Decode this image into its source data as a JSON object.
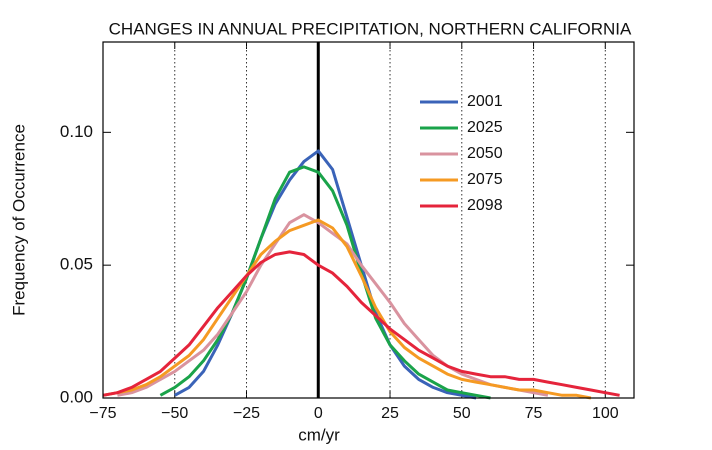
{
  "chart_data": {
    "type": "line",
    "title": "CHANGES IN ANNUAL PRECIPITATION, NORTHERN CALIFORNIA",
    "xlabel": "cm/yr",
    "ylabel": "Frequency of Occurrence",
    "x": [
      -75,
      -70,
      -65,
      -60,
      -55,
      -50,
      -45,
      -40,
      -35,
      -30,
      -25,
      -20,
      -15,
      -10,
      -5,
      0,
      5,
      10,
      15,
      20,
      25,
      30,
      35,
      40,
      45,
      50,
      55,
      60,
      65,
      70,
      75,
      80,
      85,
      90,
      95,
      100,
      105
    ],
    "series": [
      {
        "name": "2001",
        "color": "#3a63b8",
        "values": [
          null,
          null,
          null,
          null,
          null,
          0.001,
          0.004,
          0.01,
          0.02,
          0.032,
          0.045,
          0.06,
          0.073,
          0.082,
          0.089,
          0.093,
          0.086,
          0.068,
          0.05,
          0.032,
          0.02,
          0.012,
          0.007,
          0.004,
          0.002,
          0.001,
          0,
          null,
          null,
          null,
          null,
          null,
          null,
          null,
          null,
          null,
          null
        ]
      },
      {
        "name": "2025",
        "color": "#1aa34a",
        "values": [
          null,
          null,
          null,
          null,
          0.001,
          0.004,
          0.008,
          0.014,
          0.022,
          0.032,
          0.045,
          0.06,
          0.075,
          0.085,
          0.087,
          0.085,
          0.078,
          0.065,
          0.047,
          0.03,
          0.02,
          0.014,
          0.009,
          0.006,
          0.003,
          0.002,
          0.001,
          0,
          null,
          null,
          null,
          null,
          null,
          null,
          null,
          null,
          null
        ]
      },
      {
        "name": "2050",
        "color": "#d9939f",
        "values": [
          null,
          0.001,
          0.002,
          0.004,
          0.007,
          0.01,
          0.014,
          0.018,
          0.024,
          0.032,
          0.04,
          0.05,
          0.058,
          0.066,
          0.069,
          0.066,
          0.062,
          0.058,
          0.05,
          0.043,
          0.036,
          0.028,
          0.022,
          0.016,
          0.012,
          0.009,
          0.007,
          0.005,
          0.004,
          0.003,
          0.002,
          0.001,
          null,
          null,
          null,
          null,
          null
        ]
      },
      {
        "name": "2075",
        "color": "#f59a23",
        "values": [
          0.001,
          0.002,
          0.003,
          0.005,
          0.008,
          0.012,
          0.016,
          0.022,
          0.03,
          0.038,
          0.046,
          0.054,
          0.059,
          0.063,
          0.065,
          0.067,
          0.064,
          0.057,
          0.046,
          0.034,
          0.025,
          0.019,
          0.015,
          0.012,
          0.009,
          0.007,
          0.006,
          0.005,
          0.004,
          0.003,
          0.003,
          0.002,
          0.001,
          0.001,
          0,
          null,
          null
        ]
      },
      {
        "name": "2098",
        "color": "#e5243b",
        "values": [
          0.001,
          0.002,
          0.004,
          0.007,
          0.01,
          0.015,
          0.02,
          0.027,
          0.034,
          0.04,
          0.046,
          0.051,
          0.054,
          0.055,
          0.054,
          0.05,
          0.047,
          0.042,
          0.036,
          0.031,
          0.026,
          0.022,
          0.018,
          0.015,
          0.012,
          0.01,
          0.009,
          0.008,
          0.008,
          0.007,
          0.007,
          0.006,
          0.005,
          0.004,
          0.003,
          0.002,
          0.001
        ]
      }
    ],
    "xlim": [
      -75,
      110
    ],
    "ylim": [
      0,
      0.134
    ],
    "xticks": [
      {
        "value": -75,
        "label": "−75"
      },
      {
        "value": -50,
        "label": "−50"
      },
      {
        "value": -25,
        "label": "−25"
      },
      0,
      25,
      50,
      75,
      100
    ],
    "yticks": [
      {
        "value": 0,
        "label": "0.00"
      },
      0.05,
      {
        "value": 0.1,
        "label": "0.10"
      }
    ],
    "grid": "dotted",
    "zero_line": true,
    "legend": "upper right"
  }
}
